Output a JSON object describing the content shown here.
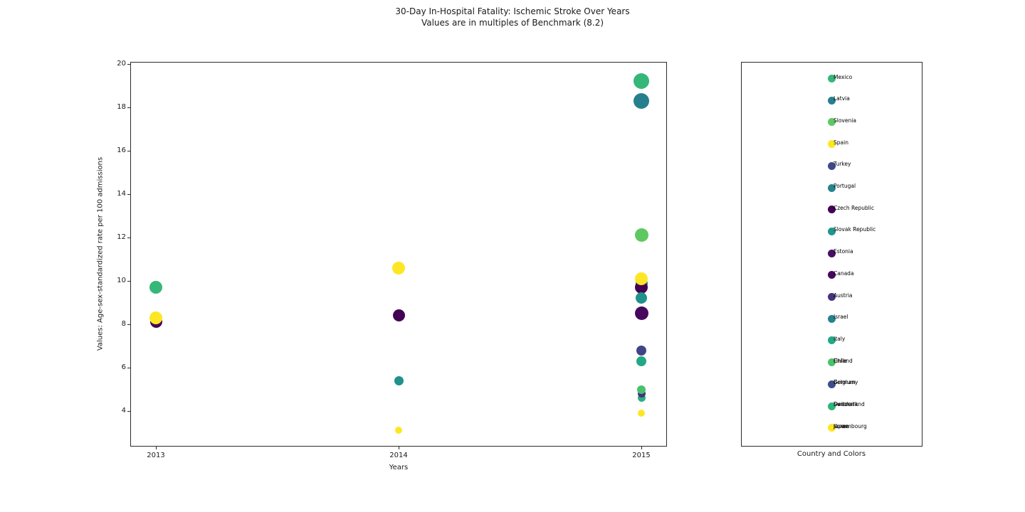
{
  "figure": {
    "title_line1": "30-Day In-Hospital Fatality: Ischemic Stroke Over Years",
    "title_line2": "Values are in multiples of Benchmark (8.2)"
  },
  "chart_data": {
    "type": "scatter",
    "title": "30-Day In-Hospital Fatality: Ischemic Stroke Over Years",
    "subtitle": "Values are in multiples of Benchmark (8.2)",
    "xlabel": "Years",
    "ylabel": "Values: Age-sex-standardized rate per 100 admissions",
    "benchmark": 8.2,
    "x_ticks": [
      "2013",
      "2014",
      "2015"
    ],
    "y_ticks": [
      20,
      18,
      16,
      14,
      12,
      10,
      8,
      6,
      4
    ],
    "ylim": [
      2.4,
      20.1
    ],
    "grid": false,
    "legend_position": "right-subplot",
    "points": [
      {
        "year": "2013",
        "value": 9.7,
        "r": 9,
        "color": "#35b779"
      },
      {
        "year": "2013",
        "value": 8.1,
        "r": 8.5,
        "color": "#440154"
      },
      {
        "year": "2013",
        "value": 8.3,
        "r": 9,
        "color": "#fde725"
      },
      {
        "year": "2014",
        "value": 10.6,
        "r": 9,
        "color": "#fde725"
      },
      {
        "year": "2014",
        "value": 8.4,
        "r": 8.5,
        "color": "#440154"
      },
      {
        "year": "2014",
        "value": 5.4,
        "r": 6.5,
        "color": "#21918c"
      },
      {
        "year": "2014",
        "value": 3.1,
        "r": 5,
        "color": "#fde725"
      },
      {
        "year": "2015",
        "value": 19.2,
        "r": 11,
        "color": "#35b779"
      },
      {
        "year": "2015",
        "value": 18.3,
        "r": 11,
        "color": "#277f8e"
      },
      {
        "year": "2015",
        "value": 12.1,
        "r": 9.5,
        "color": "#5ec962"
      },
      {
        "year": "2015",
        "value": 9.9,
        "r": 8.5,
        "color": "#21918c"
      },
      {
        "year": "2015",
        "value": 9.7,
        "r": 9,
        "color": "#440154"
      },
      {
        "year": "2015",
        "value": 9.2,
        "r": 8,
        "color": "#21918c"
      },
      {
        "year": "2015",
        "value": 10.1,
        "r": 9,
        "color": "#fde725"
      },
      {
        "year": "2015",
        "value": 8.5,
        "r": 9.5,
        "color": "#46085c"
      },
      {
        "year": "2015",
        "value": 6.8,
        "r": 7,
        "color": "#414487"
      },
      {
        "year": "2015",
        "value": 6.3,
        "r": 7,
        "color": "#22a884"
      },
      {
        "year": "2015",
        "value": 4.6,
        "r": 5.5,
        "color": "#2ab07f"
      },
      {
        "year": "2015",
        "value": 4.8,
        "r": 5.5,
        "color": "#46327e"
      },
      {
        "year": "2015",
        "value": 5.0,
        "r": 6,
        "color": "#4ac16d"
      },
      {
        "year": "2015",
        "value": 3.9,
        "r": 5,
        "color": "#fde725"
      }
    ],
    "legend": {
      "title": "Country and Colors",
      "rows": [
        {
          "labels": [
            "Mexico"
          ],
          "color": "#35b779"
        },
        {
          "labels": [
            "Latvia"
          ],
          "color": "#277f8e"
        },
        {
          "labels": [
            "Slovenia"
          ],
          "color": "#5ec962"
        },
        {
          "labels": [
            "Spain"
          ],
          "color": "#fde725"
        },
        {
          "labels": [
            "Turkey"
          ],
          "color": "#3f4889"
        },
        {
          "labels": [
            "Portugal"
          ],
          "color": "#25848e"
        },
        {
          "labels": [
            "Czech Republic"
          ],
          "color": "#440154"
        },
        {
          "labels": [
            "Slovak Republic"
          ],
          "color": "#1f968b"
        },
        {
          "labels": [
            "Estonia"
          ],
          "color": "#471063"
        },
        {
          "labels": [
            "Canada"
          ],
          "color": "#46085c"
        },
        {
          "labels": [
            "Austria"
          ],
          "color": "#46327e"
        },
        {
          "labels": [
            "Israel"
          ],
          "color": "#26828e"
        },
        {
          "labels": [
            "Italy"
          ],
          "color": "#22a884"
        },
        {
          "labels": [
            "Chile",
            "Finland"
          ],
          "color": "#4ac16d"
        },
        {
          "labels": [
            "Belgium",
            "Germany"
          ],
          "color": "#3d4e8a"
        },
        {
          "labels": [
            "Denmark",
            "Sweden",
            "Switzerland"
          ],
          "color": "#2fb47c"
        },
        {
          "labels": [
            "Japan",
            "Korea",
            "Luxembourg"
          ],
          "color": "#fde725"
        }
      ]
    }
  }
}
